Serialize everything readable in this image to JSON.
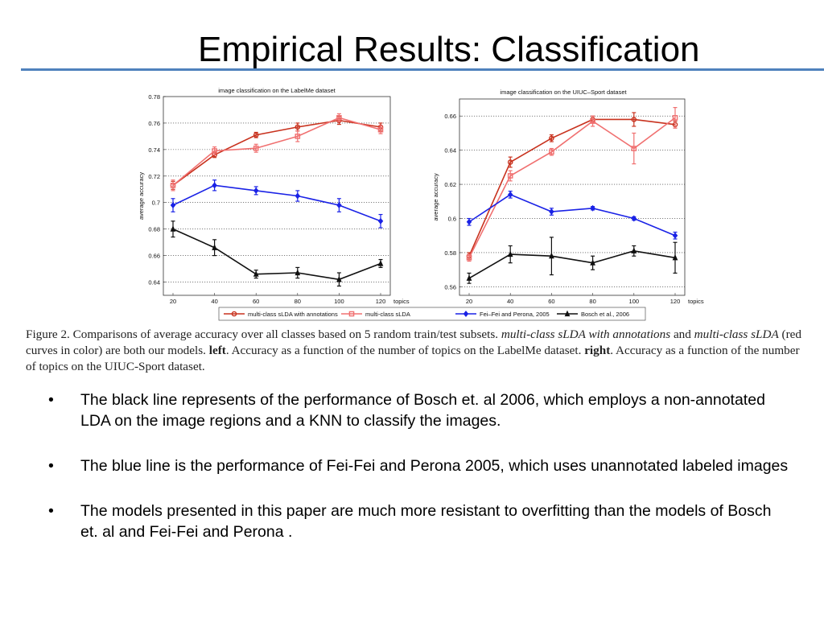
{
  "slide": {
    "title": "Empirical Results: Classification",
    "bullets": [
      "The black line represents of the performance of Bosch et. al 2006, which employs a non-annotated LDA on the image regions and a KNN to classify the images.",
      "The blue line is the performance of Fei-Fei and Perona 2005, which uses unannotated labeled images",
      "The models presented in this paper are much more resistant to overfitting than the models of Bosch et. al and Fei-Fei and Perona ."
    ],
    "bullet_char": "•"
  },
  "caption": {
    "prefix": "Figure 2. Comparisons of average accuracy over all classes based on 5 random train/test subsets. ",
    "italic1": "multi-class sLDA with annotations",
    "and1": " and ",
    "italic2": "multi-class sLDA",
    "mid": " (red curves in color) are both our models. ",
    "bold_left": "left",
    "left_text": ". Accuracy as a function of the number of topics on the LabelMe dataset. ",
    "bold_right": "right",
    "right_text": ". Accuracy as a function of the number of topics on the UIUC-Sport dataset."
  },
  "legend": [
    {
      "name": "multi-class sLDA with annotations",
      "color": "#c8321e",
      "marker": "circle"
    },
    {
      "name": "multi-class sLDA",
      "color": "#f07070",
      "marker": "square"
    },
    {
      "name": "Fei–Fei and Perona, 2005",
      "color": "#1a22e6",
      "marker": "diamond"
    },
    {
      "name": "Bosch et al., 2006",
      "color": "#111111",
      "marker": "triangle"
    }
  ],
  "chart_data": [
    {
      "type": "line",
      "title": "image classification on the LabelMe dataset",
      "xlabel": "topics",
      "ylabel": "average accuracy",
      "x": [
        20,
        40,
        60,
        80,
        100,
        120
      ],
      "xticks": [
        "20",
        "40",
        "60",
        "80",
        "100",
        "120"
      ],
      "ylim": [
        0.63,
        0.78
      ],
      "yticks": [
        0.64,
        0.66,
        0.68,
        0.7,
        0.72,
        0.74,
        0.76,
        0.78
      ],
      "ytick_labels": [
        "0.64",
        "0.66",
        "0.68",
        "0.7",
        "0.72",
        "0.74",
        "0.76",
        "0.78"
      ],
      "grid": "horizontal dotted",
      "series": [
        {
          "name": "multi-class sLDA with annotations",
          "values": [
            0.713,
            0.736,
            0.751,
            0.757,
            0.762,
            0.757
          ],
          "err": [
            0.003,
            0.002,
            0.002,
            0.003,
            0.003,
            0.003
          ]
        },
        {
          "name": "multi-class sLDA",
          "values": [
            0.713,
            0.739,
            0.741,
            0.75,
            0.764,
            0.755
          ],
          "err": [
            0.004,
            0.003,
            0.003,
            0.004,
            0.003,
            0.003
          ]
        },
        {
          "name": "Fei–Fei and Perona, 2005",
          "values": [
            0.698,
            0.713,
            0.709,
            0.705,
            0.698,
            0.686
          ],
          "err": [
            0.005,
            0.004,
            0.003,
            0.004,
            0.005,
            0.005
          ]
        },
        {
          "name": "Bosch et al., 2006",
          "values": [
            0.68,
            0.666,
            0.646,
            0.647,
            0.642,
            0.654
          ],
          "err": [
            0.006,
            0.006,
            0.003,
            0.004,
            0.005,
            0.003
          ]
        }
      ]
    },
    {
      "type": "line",
      "title": "image classification on the UIUC–Sport dataset",
      "xlabel": "topics",
      "ylabel": "average accuracy",
      "x": [
        20,
        40,
        60,
        80,
        100,
        120
      ],
      "xticks": [
        "20",
        "40",
        "60",
        "80",
        "100",
        "120"
      ],
      "ylim": [
        0.555,
        0.67
      ],
      "yticks": [
        0.56,
        0.58,
        0.6,
        0.62,
        0.64,
        0.66
      ],
      "ytick_labels": [
        "0.56",
        "0.58",
        "0.6",
        "0.62",
        "0.64",
        "0.66"
      ],
      "grid": "horizontal dotted",
      "series": [
        {
          "name": "multi-class sLDA with annotations",
          "values": [
            0.578,
            0.633,
            0.647,
            0.658,
            0.658,
            0.655
          ],
          "err": [
            0.002,
            0.003,
            0.002,
            0.002,
            0.004,
            0.002
          ]
        },
        {
          "name": "multi-class sLDA",
          "values": [
            0.577,
            0.625,
            0.639,
            0.657,
            0.641,
            0.659
          ],
          "err": [
            0.002,
            0.003,
            0.002,
            0.003,
            0.009,
            0.006
          ]
        },
        {
          "name": "Fei–Fei and Perona, 2005",
          "values": [
            0.598,
            0.614,
            0.604,
            0.606,
            0.6,
            0.59
          ],
          "err": [
            0.002,
            0.002,
            0.002,
            0.001,
            0.001,
            0.002
          ]
        },
        {
          "name": "Bosch et al., 2006",
          "values": [
            0.565,
            0.579,
            0.578,
            0.574,
            0.581,
            0.577
          ],
          "err": [
            0.003,
            0.005,
            0.011,
            0.004,
            0.003,
            0.009
          ]
        }
      ]
    }
  ]
}
